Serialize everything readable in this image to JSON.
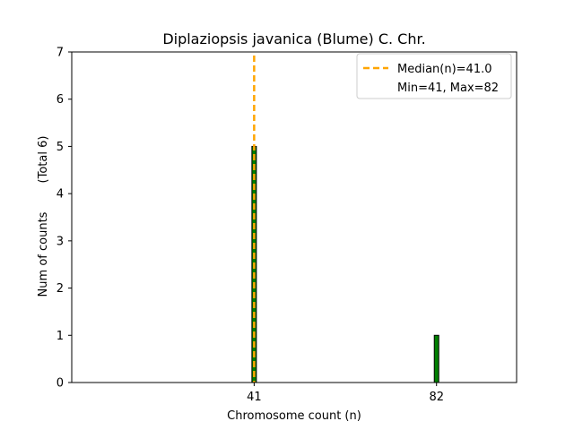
{
  "chart_data": {
    "type": "bar",
    "title": "Diplaziopsis javanica (Blume) C. Chr.",
    "xlabel": "Chromosome count (n)",
    "ylabel": "Num of counts",
    "ylabel_total": "(Total 6)",
    "categories": [
      41,
      82
    ],
    "values": [
      5,
      1
    ],
    "xticks": [
      41,
      82
    ],
    "yticks": [
      0,
      1,
      2,
      3,
      4,
      5,
      6,
      7
    ],
    "xlim": [
      0,
      100
    ],
    "ylim": [
      0,
      7
    ],
    "grid": false,
    "bar_color": "#008000",
    "median": 41.0,
    "median_color": "#FFA500",
    "legend": {
      "placement": "top-right",
      "median_label": "Median(n)=41.0",
      "minmax_label": "Min=41, Max=82"
    }
  }
}
